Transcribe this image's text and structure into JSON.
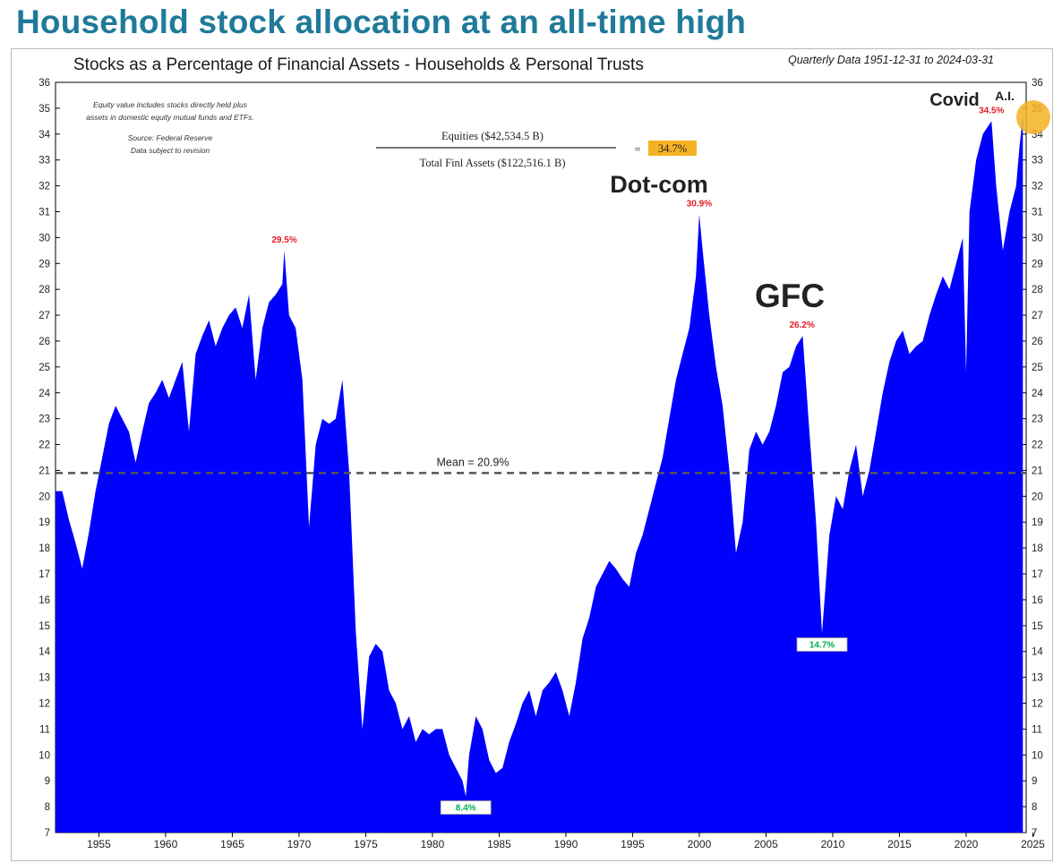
{
  "page": {
    "headline": "Household stock allocation at an all-time high",
    "subtitle": "Stocks as a Percentage of Financial Assets - Households & Personal Trusts",
    "range": "Quarterly Data 1951-12-31 to 2024-03-31"
  },
  "notes": [
    "Equity value includes stocks directly held plus",
    "assets in domestic equity mutual funds and ETFs.",
    "Source: Federal Reserve",
    "Data subject to revision"
  ],
  "formula": {
    "numerator": "Equities ($42,534.5 B)",
    "denominator": "Total Finl Assets ($122,516.1 B)",
    "equals": "=",
    "result": "34.7%"
  },
  "events": {
    "dotcom": "Dot-com",
    "gfc": "GFC",
    "covid": "Covid",
    "ai": "A.I."
  },
  "colors": {
    "area": "#0000ff",
    "headline": "#1f7a9a",
    "peak_label": "#e31b23",
    "trough_label": "#00b050",
    "highlight": "#f5b225"
  },
  "chart_data": {
    "type": "area",
    "ylim": [
      7,
      36
    ],
    "xlim": [
      1951.75,
      2024.5
    ],
    "y_ticks": [
      7,
      8,
      9,
      10,
      11,
      12,
      13,
      14,
      15,
      16,
      17,
      18,
      19,
      20,
      21,
      22,
      23,
      24,
      25,
      26,
      27,
      28,
      29,
      30,
      31,
      32,
      33,
      34,
      35,
      36
    ],
    "x_ticks": [
      1955,
      1960,
      1965,
      1970,
      1975,
      1980,
      1985,
      1990,
      1995,
      2000,
      2005,
      2010,
      2015,
      2020,
      2025
    ],
    "grid": false,
    "mean": {
      "value": 20.9,
      "label": "Mean = 20.9%"
    },
    "annotations": [
      {
        "text": "29.5%",
        "x": 1968.9,
        "y": 29.5,
        "kind": "peak"
      },
      {
        "text": "8.4%",
        "x": 1982.5,
        "y": 8.4,
        "kind": "trough"
      },
      {
        "text": "30.9%",
        "x": 2000.0,
        "y": 30.9,
        "kind": "peak"
      },
      {
        "text": "26.2%",
        "x": 2007.7,
        "y": 26.2,
        "kind": "peak"
      },
      {
        "text": "14.7%",
        "x": 2009.2,
        "y": 14.7,
        "kind": "trough"
      },
      {
        "text": "34.5%",
        "x": 2021.9,
        "y": 34.5,
        "kind": "peak"
      }
    ],
    "series": [
      {
        "x": [
          1951.75,
          1952.25,
          1952.75,
          1953.25,
          1953.75,
          1954.25,
          1954.75,
          1955.25,
          1955.75,
          1956.25,
          1956.75,
          1957.25,
          1957.75,
          1958.25,
          1958.75,
          1959.25,
          1959.75,
          1960.25,
          1960.75,
          1961.25,
          1961.75,
          1962.25,
          1962.75,
          1963.25,
          1963.75,
          1964.25,
          1964.75,
          1965.25,
          1965.75,
          1966.25,
          1966.75,
          1967.25,
          1967.75,
          1968.25,
          1968.75,
          1968.9,
          1969.25,
          1969.75,
          1970.25,
          1970.75,
          1971.25,
          1971.75,
          1972.25,
          1972.75,
          1973.25,
          1973.75,
          1974.25,
          1974.75,
          1975.25,
          1975.75,
          1976.25,
          1976.75,
          1977.25,
          1977.75,
          1978.25,
          1978.75,
          1979.25,
          1979.75,
          1980.25,
          1980.75,
          1981.25,
          1981.75,
          1982.25,
          1982.5,
          1982.75,
          1983.25,
          1983.75,
          1984.25,
          1984.75,
          1985.25,
          1985.75,
          1986.25,
          1986.75,
          1987.25,
          1987.75,
          1988.25,
          1988.75,
          1989.25,
          1989.75,
          1990.25,
          1990.75,
          1991.25,
          1991.75,
          1992.25,
          1992.75,
          1993.25,
          1993.75,
          1994.25,
          1994.75,
          1995.25,
          1995.75,
          1996.25,
          1996.75,
          1997.25,
          1997.75,
          1998.25,
          1998.75,
          1999.25,
          1999.75,
          2000.0,
          2000.25,
          2000.75,
          2001.25,
          2001.75,
          2002.25,
          2002.75,
          2003.25,
          2003.75,
          2004.25,
          2004.75,
          2005.25,
          2005.75,
          2006.25,
          2006.75,
          2007.25,
          2007.75,
          2008.25,
          2008.75,
          2009.2,
          2009.75,
          2010.25,
          2010.75,
          2011.25,
          2011.75,
          2012.25,
          2012.75,
          2013.25,
          2013.75,
          2014.25,
          2014.75,
          2015.25,
          2015.75,
          2016.25,
          2016.75,
          2017.25,
          2017.75,
          2018.25,
          2018.75,
          2019.25,
          2019.75,
          2020.0,
          2020.25,
          2020.75,
          2021.25,
          2021.9,
          2022.25,
          2022.75,
          2023.25,
          2023.75,
          2024.0,
          2024.25
        ],
        "values": [
          20.2,
          20.2,
          19.1,
          18.2,
          17.2,
          18.6,
          20.2,
          21.5,
          22.8,
          23.5,
          23.0,
          22.5,
          21.3,
          22.5,
          23.6,
          24.0,
          24.5,
          23.8,
          24.5,
          25.2,
          22.5,
          25.5,
          26.2,
          26.8,
          25.8,
          26.5,
          27.0,
          27.3,
          26.5,
          27.8,
          24.5,
          26.5,
          27.5,
          27.8,
          28.2,
          29.5,
          27.0,
          26.5,
          24.5,
          18.8,
          22.0,
          23.0,
          22.8,
          23.0,
          24.5,
          21.0,
          14.8,
          11.0,
          13.8,
          14.3,
          14.0,
          12.5,
          12.0,
          11.0,
          11.5,
          10.5,
          11.0,
          10.8,
          11.0,
          11.0,
          10.0,
          9.5,
          9.0,
          8.4,
          10.0,
          11.5,
          11.0,
          9.8,
          9.3,
          9.5,
          10.5,
          11.2,
          12.0,
          12.5,
          11.5,
          12.5,
          12.8,
          13.2,
          12.5,
          11.5,
          12.8,
          14.5,
          15.3,
          16.5,
          17.0,
          17.5,
          17.2,
          16.8,
          16.5,
          17.8,
          18.5,
          19.5,
          20.5,
          21.5,
          23.0,
          24.5,
          25.5,
          26.5,
          28.5,
          30.9,
          29.5,
          27.0,
          25.0,
          23.5,
          21.0,
          17.8,
          19.0,
          21.8,
          22.5,
          22.0,
          22.5,
          23.5,
          24.8,
          25.0,
          25.8,
          26.2,
          22.5,
          19.0,
          14.7,
          18.5,
          20.0,
          19.5,
          21.0,
          22.0,
          20.0,
          21.0,
          22.5,
          24.0,
          25.2,
          26.0,
          26.4,
          25.5,
          25.8,
          26.0,
          27.0,
          27.8,
          28.5,
          28.0,
          29.0,
          30.0,
          24.8,
          31.0,
          33.0,
          34.0,
          34.5,
          32.0,
          29.5,
          31.0,
          32.0,
          33.5,
          34.7
        ]
      }
    ]
  }
}
